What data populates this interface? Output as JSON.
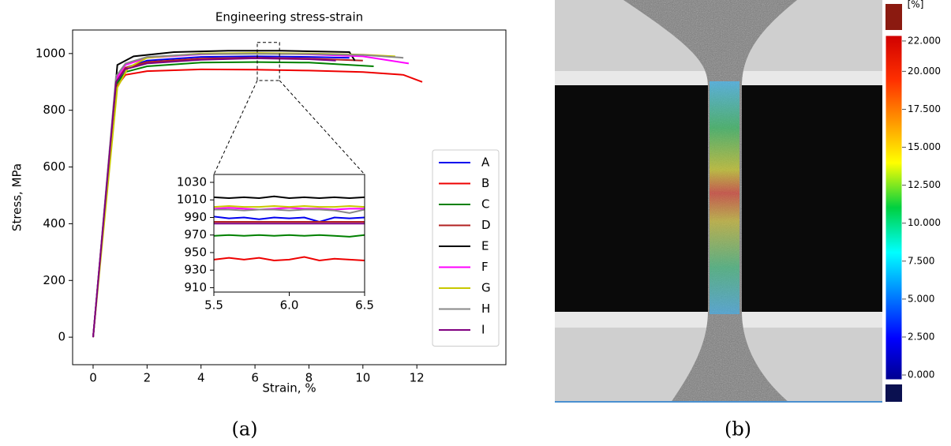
{
  "chart_data": [
    {
      "type": "line",
      "title": "Engineering stress-strain",
      "x_label": "Strain, %",
      "y_label": "Stress, MPa",
      "xlim": [
        -0.76,
        15.3
      ],
      "ylim": [
        -97,
        1083
      ],
      "xticks": [
        0,
        2,
        4,
        6,
        8,
        10,
        12
      ],
      "yticks": [
        0,
        200,
        400,
        600,
        800,
        1000
      ],
      "legend": "right",
      "series": [
        {
          "name": "A",
          "color": "#0000ee",
          "x": [
            0,
            0.85,
            1.2,
            2,
            4,
            6,
            8,
            9.5
          ],
          "values": [
            0,
            890,
            950,
            975,
            988,
            990,
            988,
            985
          ]
        },
        {
          "name": "B",
          "color": "#ee0000",
          "x": [
            0,
            0.85,
            1.2,
            2,
            4,
            6,
            8,
            10,
            11.5,
            12.2
          ],
          "values": [
            0,
            880,
            925,
            938,
            944,
            943,
            940,
            935,
            925,
            900
          ]
        },
        {
          "name": "C",
          "color": "#008000",
          "x": [
            0,
            0.85,
            1.2,
            2,
            4,
            6,
            8,
            10.4
          ],
          "values": [
            0,
            890,
            935,
            955,
            968,
            970,
            968,
            955
          ]
        },
        {
          "name": "D",
          "color": "#b22222",
          "x": [
            0,
            0.85,
            1.2,
            2,
            4,
            6,
            8,
            10
          ],
          "values": [
            0,
            900,
            950,
            970,
            982,
            985,
            982,
            975
          ]
        },
        {
          "name": "E",
          "color": "#000000",
          "x": [
            0,
            0.9,
            1.5,
            3,
            5,
            7,
            9.5,
            9.7
          ],
          "values": [
            0,
            960,
            990,
            1005,
            1010,
            1010,
            1005,
            975
          ]
        },
        {
          "name": "F",
          "color": "#ff00ff",
          "x": [
            0,
            0.85,
            1.2,
            2,
            4,
            6,
            8,
            10,
            11.7
          ],
          "values": [
            0,
            910,
            960,
            985,
            997,
            1000,
            997,
            990,
            965
          ]
        },
        {
          "name": "G",
          "color": "#c8c800",
          "x": [
            0,
            0.9,
            1.3,
            2,
            4,
            6,
            8,
            10,
            11.2
          ],
          "values": [
            0,
            880,
            950,
            985,
            1000,
            1002,
            1000,
            996,
            990
          ]
        },
        {
          "name": "H",
          "color": "#888888",
          "x": [
            0,
            0.85,
            1.2,
            2,
            4,
            6,
            8,
            10,
            11.5
          ],
          "values": [
            0,
            920,
            965,
            988,
            998,
            999,
            998,
            995,
            985
          ]
        },
        {
          "name": "I",
          "color": "#800080",
          "x": [
            0,
            0.85,
            1.2,
            2,
            4,
            6,
            8,
            9
          ],
          "values": [
            0,
            900,
            945,
            965,
            978,
            983,
            980,
            975
          ]
        }
      ]
    },
    {
      "type": "line",
      "xlim": [
        5.5,
        6.5
      ],
      "ylim": [
        905,
        1039
      ],
      "xticks": [
        5.5,
        {
          "value": 6,
          "label": "6.0"
        },
        6.5
      ],
      "yticks": [
        910,
        930,
        950,
        970,
        990,
        1010,
        1030
      ],
      "x": [
        5.5,
        5.6,
        5.7,
        5.8,
        5.9,
        6.0,
        6.1,
        6.2,
        6.3,
        6.4,
        6.5
      ],
      "series": [
        {
          "color": "#0000ee",
          "values": [
            991,
            989,
            990,
            988,
            990,
            989,
            990,
            985,
            990,
            989,
            990
          ]
        },
        {
          "color": "#ee0000",
          "values": [
            942,
            944,
            942,
            944,
            941,
            942,
            945,
            941,
            943,
            942,
            941
          ]
        },
        {
          "color": "#008000",
          "values": [
            969,
            970,
            969,
            970,
            969,
            970,
            969,
            970,
            969,
            968,
            970
          ]
        },
        {
          "color": "#b22222",
          "values": [
            985,
            985,
            985,
            985,
            985,
            985,
            985,
            985,
            985,
            985,
            985
          ]
        },
        {
          "color": "#000000",
          "values": [
            1013,
            1012,
            1013,
            1012,
            1014,
            1012,
            1013,
            1012,
            1013,
            1012,
            1013
          ]
        },
        {
          "color": "#ff00ff",
          "values": [
            1000,
            1001,
            1000,
            999,
            1000,
            1001,
            1000,
            1000,
            999,
            1000,
            1000
          ]
        },
        {
          "color": "#c8c800",
          "values": [
            1002,
            1003,
            1002,
            1002,
            1003,
            1002,
            1003,
            1002,
            1002,
            1003,
            1002
          ]
        },
        {
          "color": "#888888",
          "values": [
            999,
            999,
            998,
            999,
            999,
            998,
            999,
            999,
            998,
            995,
            999
          ]
        },
        {
          "color": "#800080",
          "values": [
            983,
            983,
            983,
            983,
            983,
            983,
            983,
            983,
            983,
            983,
            983
          ]
        }
      ]
    },
    {
      "type": "colorbar",
      "title": "[%]",
      "ylim": [
        -0.31,
        22.36
      ],
      "yticks": [
        {
          "value": 0,
          "label": "0.000"
        },
        {
          "value": 2.5,
          "label": "2.500"
        },
        {
          "value": 5,
          "label": "5.000"
        },
        {
          "value": 7.5,
          "label": "7.500"
        },
        {
          "value": 10,
          "label": "10.000"
        },
        {
          "value": 12.5,
          "label": "12.500"
        },
        {
          "value": 15,
          "label": "15.000"
        },
        {
          "value": 17.5,
          "label": "17.500"
        },
        {
          "value": 20,
          "label": "20.000"
        },
        {
          "value": 22,
          "label": "22.000"
        }
      ]
    }
  ],
  "captions": [
    "(a)",
    "(b)"
  ]
}
